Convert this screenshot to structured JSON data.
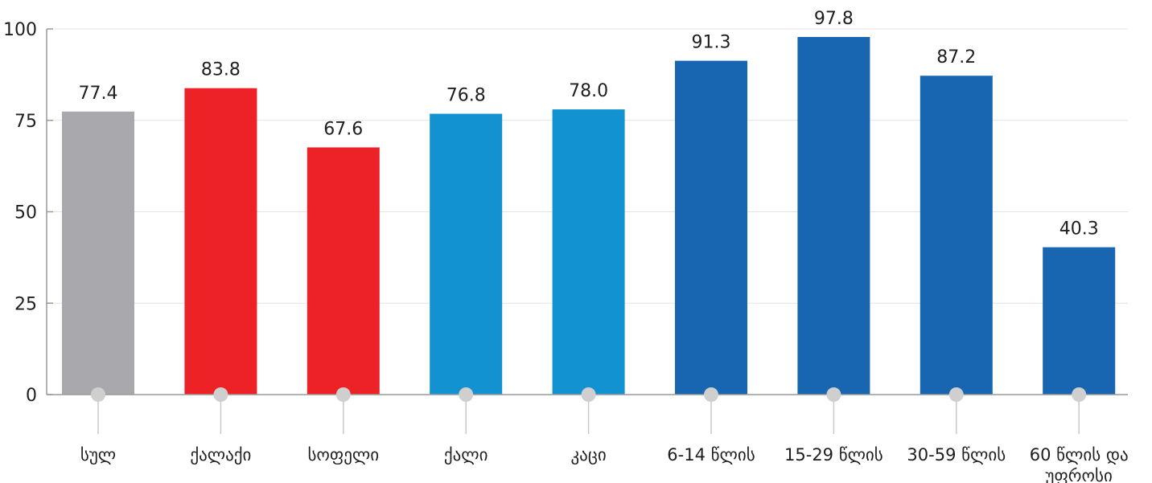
{
  "chart_data": {
    "type": "bar",
    "title": "",
    "xlabel": "",
    "ylabel": "",
    "ylim": [
      0,
      100
    ],
    "yticks": [
      0,
      25,
      50,
      75,
      100
    ],
    "grid": true,
    "categories": [
      [
        "სულ"
      ],
      [
        "ქალაქი"
      ],
      [
        "სოფელი"
      ],
      [
        "ქალი"
      ],
      [
        "კაცი"
      ],
      [
        "6-14 წლის"
      ],
      [
        "15-29 წლის"
      ],
      [
        "30-59 წლის"
      ],
      [
        "60 წლის და",
        "უფროსი"
      ]
    ],
    "values": [
      77.4,
      83.8,
      67.6,
      76.8,
      78.0,
      91.3,
      97.8,
      87.2,
      40.3
    ],
    "value_labels": [
      "77.4",
      "83.8",
      "67.6",
      "76.8",
      "78.0",
      "91.3",
      "97.8",
      "87.2",
      "40.3"
    ],
    "bar_colors": [
      "#a9a9ad",
      "#ec2227",
      "#ec2227",
      "#1392d1",
      "#1392d1",
      "#1866b1",
      "#1866b1",
      "#1866b1",
      "#1866b1"
    ],
    "colors": {
      "grid": "#e4e4e4",
      "axis": "#9a9a9a",
      "marker": "#cfcfcf",
      "connector": "#c8c8c8",
      "text": "#1f1f1f"
    }
  }
}
